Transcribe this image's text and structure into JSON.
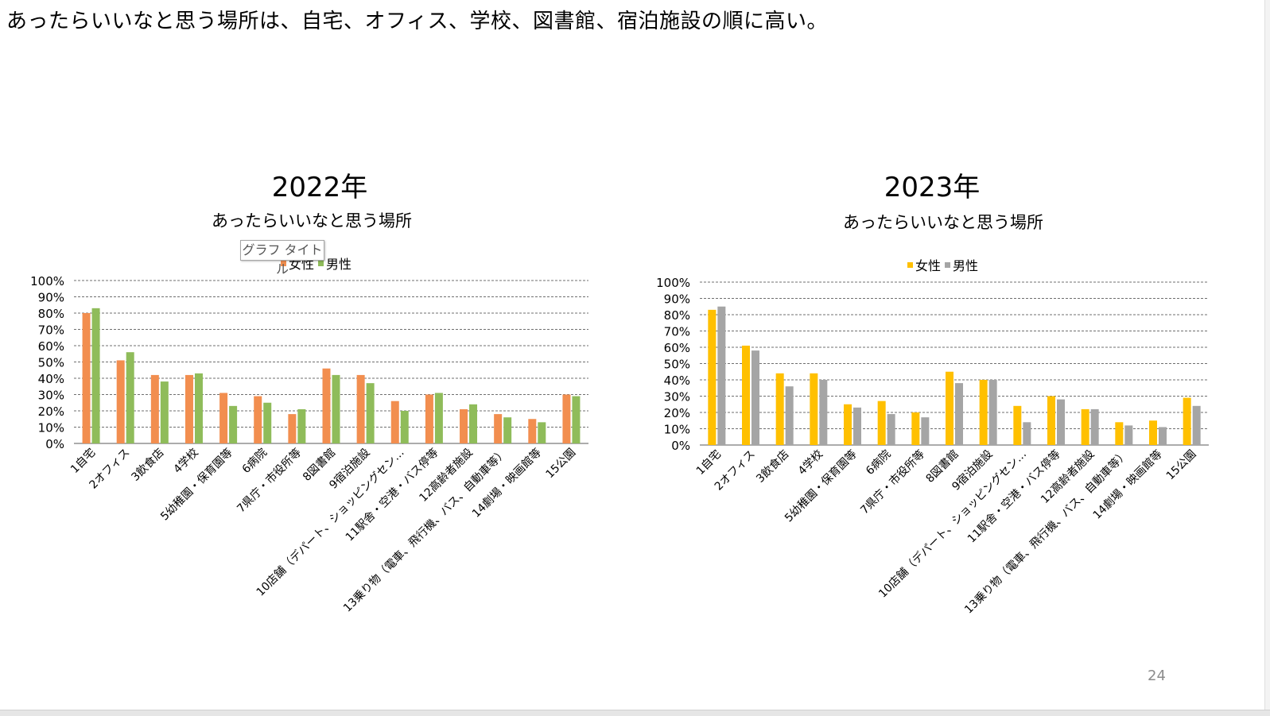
{
  "heading": "あったらいいなと思う場所は、自宅、オフィス、学校、図書館、宿泊施設の順に高い。",
  "page_number": "24",
  "tooltip": "グラフ タイトル",
  "charts": {
    "c2022": {
      "year": "2022年",
      "title": "あったらいいなと思う場所",
      "legend": [
        "女性",
        "男性"
      ]
    },
    "c2023": {
      "year": "2023年",
      "title": "あったらいいなと思う場所",
      "legend": [
        "女性",
        "男性"
      ]
    }
  },
  "colors": {
    "c2022_female": "#f28e4f",
    "c2022_male": "#8fbc5a",
    "c2023_female": "#ffc000",
    "c2023_male": "#a5a5a5"
  },
  "chart_data": [
    {
      "type": "bar",
      "title": "あったらいいなと思う場所",
      "categories": [
        "1自宅",
        "2オフィス",
        "3飲食店",
        "4学校",
        "5幼稚園・保育園等",
        "6病院",
        "7県庁・市役所等",
        "8図書館",
        "9宿泊施設",
        "10店舗（デパート、ショッピングセン…",
        "11駅舎・空港・バス停等",
        "12高齢者施設",
        "13乗り物（電車、飛行機、バス、自動車等）",
        "14劇場・映画館等",
        "15公園"
      ],
      "series": [
        {
          "name": "女性",
          "values": [
            0.8,
            0.51,
            0.42,
            0.42,
            0.31,
            0.29,
            0.18,
            0.46,
            0.42,
            0.26,
            0.3,
            0.21,
            0.18,
            0.15,
            0.3
          ]
        },
        {
          "name": "男性",
          "values": [
            0.83,
            0.56,
            0.38,
            0.43,
            0.23,
            0.25,
            0.21,
            0.42,
            0.37,
            0.2,
            0.31,
            0.24,
            0.16,
            0.13,
            0.29
          ]
        }
      ],
      "ylim": [
        0,
        1
      ],
      "yticks": [
        "0%",
        "10%",
        "20%",
        "30%",
        "40%",
        "50%",
        "60%",
        "70%",
        "80%",
        "90%",
        "100%"
      ],
      "legend_position": "top",
      "grid": true
    },
    {
      "type": "bar",
      "title": "あったらいいなと思う場所",
      "categories": [
        "1自宅",
        "2オフィス",
        "3飲食店",
        "4学校",
        "5幼稚園・保育園等",
        "6病院",
        "7県庁・市役所等",
        "8図書館",
        "9宿泊施設",
        "10店舗（デパート、ショッピングセン…",
        "11駅舎・空港・バス停等",
        "12高齢者施設",
        "13乗り物（電車、飛行機、バス、自動車等）",
        "14劇場・映画館等",
        "15公園"
      ],
      "series": [
        {
          "name": "女性",
          "values": [
            0.83,
            0.61,
            0.44,
            0.44,
            0.25,
            0.27,
            0.2,
            0.45,
            0.4,
            0.24,
            0.3,
            0.22,
            0.14,
            0.15,
            0.29
          ]
        },
        {
          "name": "男性",
          "values": [
            0.85,
            0.58,
            0.36,
            0.4,
            0.23,
            0.19,
            0.17,
            0.38,
            0.4,
            0.14,
            0.28,
            0.22,
            0.12,
            0.11,
            0.24
          ]
        }
      ],
      "ylim": [
        0,
        1
      ],
      "yticks": [
        "0%",
        "10%",
        "20%",
        "30%",
        "40%",
        "50%",
        "60%",
        "70%",
        "80%",
        "90%",
        "100%"
      ],
      "legend_position": "top",
      "grid": true
    }
  ]
}
